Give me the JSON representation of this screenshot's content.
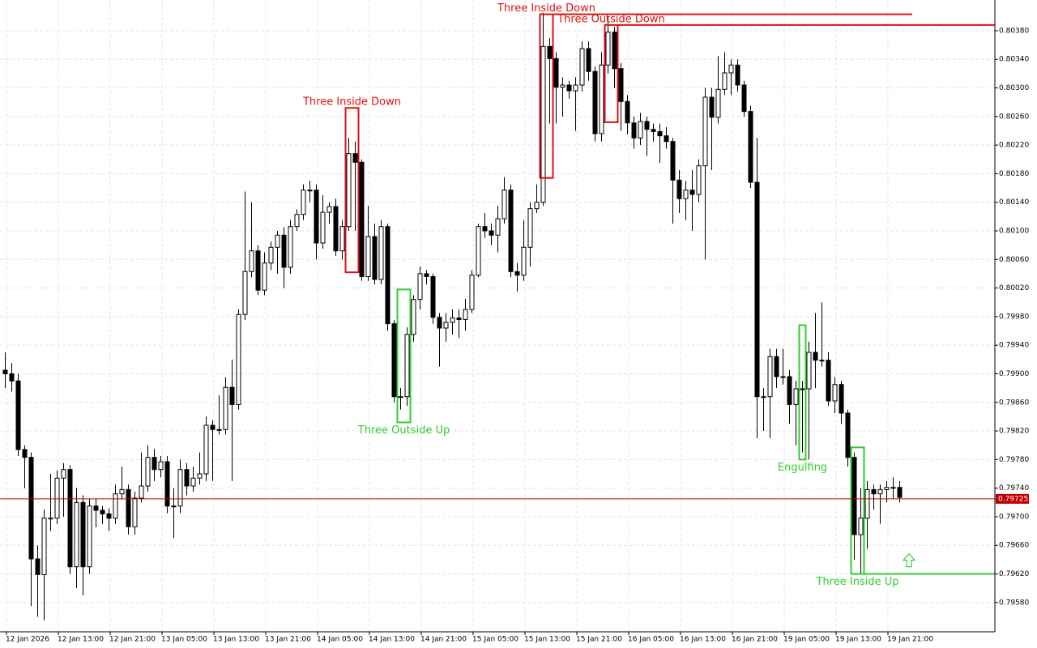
{
  "chart_data": {
    "type": "candlestick",
    "xlim": [
      -0.75,
      152.75
    ],
    "ylim": [
      0.79539,
      0.80423
    ],
    "grid": true,
    "bull_color": "#ffffff",
    "bear_color": "#000000",
    "outline_color": "#000000",
    "xticks": [
      {
        "value": 0,
        "label": "12 Jan 2026"
      },
      {
        "value": 8,
        "label": "12 Jan 13:00"
      },
      {
        "value": 16,
        "label": "12 Jan 21:00"
      },
      {
        "value": 24,
        "label": "13 Jan 05:00"
      },
      {
        "value": 32,
        "label": "13 Jan 13:00"
      },
      {
        "value": 40,
        "label": "13 Jan 21:00"
      },
      {
        "value": 48,
        "label": "14 Jan 05:00"
      },
      {
        "value": 56,
        "label": "14 Jan 13:00"
      },
      {
        "value": 64,
        "label": "14 Jan 21:00"
      },
      {
        "value": 72,
        "label": "15 Jan 05:00"
      },
      {
        "value": 80,
        "label": "15 Jan 13:00"
      },
      {
        "value": 88,
        "label": "15 Jan 21:00"
      },
      {
        "value": 96,
        "label": "16 Jan 05:00"
      },
      {
        "value": 104,
        "label": "16 Jan 13:00"
      },
      {
        "value": 112,
        "label": "16 Jan 21:00"
      },
      {
        "value": 120,
        "label": "19 Jan 05:00"
      },
      {
        "value": 128,
        "label": "19 Jan 13:00"
      },
      {
        "value": 136,
        "label": "19 Jan 21:00"
      }
    ],
    "yticks": [
      {
        "value": 0.8038,
        "label": "0.80380"
      },
      {
        "value": 0.8034,
        "label": "0.80340"
      },
      {
        "value": 0.803,
        "label": "0.80300"
      },
      {
        "value": 0.8026,
        "label": "0.80260"
      },
      {
        "value": 0.8022,
        "label": "0.80220"
      },
      {
        "value": 0.8018,
        "label": "0.80180"
      },
      {
        "value": 0.8014,
        "label": "0.80140"
      },
      {
        "value": 0.801,
        "label": "0.80100"
      },
      {
        "value": 0.8006,
        "label": "0.80060"
      },
      {
        "value": 0.8002,
        "label": "0.80020"
      },
      {
        "value": 0.7998,
        "label": "0.79980"
      },
      {
        "value": 0.7994,
        "label": "0.79940"
      },
      {
        "value": 0.799,
        "label": "0.79900"
      },
      {
        "value": 0.7986,
        "label": "0.79860"
      },
      {
        "value": 0.7982,
        "label": "0.79820"
      },
      {
        "value": 0.7978,
        "label": "0.79780"
      },
      {
        "value": 0.7974,
        "label": "0.79740"
      },
      {
        "value": 0.797,
        "label": "0.79700"
      },
      {
        "value": 0.7966,
        "label": "0.79660"
      },
      {
        "value": 0.7962,
        "label": "0.79620"
      },
      {
        "value": 0.7958,
        "label": "0.79580"
      }
    ],
    "current_price": {
      "value": 0.79725,
      "label": "0.79725",
      "color": "#c00000"
    },
    "open": [
      0.79905,
      0.799,
      0.7989,
      0.79794,
      0.79783,
      0.79641,
      0.79619,
      0.79698,
      0.79698,
      0.79754,
      0.79766,
      0.7963,
      0.7972,
      0.7963,
      0.79715,
      0.79709,
      0.79704,
      0.79698,
      0.79732,
      0.79738,
      0.79686,
      0.79726,
      0.79743,
      0.79783,
      0.79766,
      0.79777,
      0.79715,
      0.79715,
      0.79766,
      0.79743,
      0.79754,
      0.7976,
      0.79828,
      0.79822,
      0.79822,
      0.79881,
      0.79857,
      0.79983,
      0.80043,
      0.80072,
      0.80017,
      0.80055,
      0.80077,
      0.80094,
      0.80049,
      0.80106,
      0.80123,
      0.80157,
      0.80157,
      0.80083,
      0.80126,
      0.80134,
      0.80072,
      0.80106,
      0.80208,
      0.80196,
      0.80036,
      0.80092,
      0.80032,
      0.80106,
      0.7997,
      0.79868,
      0.79868,
      0.79955,
      0.80004,
      0.8004,
      0.80036,
      0.79979,
      0.79964,
      0.79972,
      0.79978,
      0.79976,
      0.7999,
      0.80038,
      0.80106,
      0.801,
      0.80094,
      0.80117,
      0.80157,
      0.80043,
      0.80038,
      0.80077,
      0.80131,
      0.8014,
      0.80358,
      0.80341,
      0.80301,
      0.80304,
      0.80296,
      0.80304,
      0.80355,
      0.80323,
      0.80236,
      0.80332,
      0.80378,
      0.80327,
      0.80281,
      0.80251,
      0.8023,
      0.80253,
      0.80242,
      0.80239,
      0.80233,
      0.80225,
      0.80171,
      0.80145,
      0.80157,
      0.80151,
      0.80191,
      0.80287,
      0.80259,
      0.80298,
      0.80321,
      0.80332,
      0.80304,
      0.80267,
      0.80168,
      0.79868,
      0.79868,
      0.79924,
      0.79896,
      0.79896,
      0.79857,
      0.79879,
      0.79879,
      0.7993,
      0.79919,
      0.79919,
      0.79862,
      0.79885,
      0.79845,
      0.79783,
      0.79675,
      0.79698,
      0.79738,
      0.79732,
      0.79738,
      0.79741,
      0.79741
    ],
    "high": [
      0.7993,
      0.79915,
      0.799,
      0.798,
      0.7979,
      0.7966,
      0.7971,
      0.7976,
      0.79765,
      0.79775,
      0.79772,
      0.7974,
      0.7973,
      0.79725,
      0.79725,
      0.79715,
      0.79712,
      0.79745,
      0.7977,
      0.79745,
      0.79735,
      0.7979,
      0.798,
      0.79795,
      0.79785,
      0.79785,
      0.7974,
      0.7978,
      0.79775,
      0.7977,
      0.7979,
      0.7984,
      0.79835,
      0.7987,
      0.79895,
      0.7992,
      0.7999,
      0.80155,
      0.8014,
      0.8008,
      0.8007,
      0.80085,
      0.801,
      0.80105,
      0.80115,
      0.8013,
      0.80165,
      0.8017,
      0.80165,
      0.8015,
      0.8014,
      0.80145,
      0.80115,
      0.8023,
      0.80225,
      0.802,
      0.80135,
      0.8011,
      0.80115,
      0.8011,
      0.79975,
      0.7988,
      0.79965,
      0.8001,
      0.8005,
      0.80045,
      0.8004,
      0.79985,
      0.79985,
      0.7999,
      0.7999,
      0.80005,
      0.80045,
      0.8011,
      0.80125,
      0.8011,
      0.80135,
      0.80175,
      0.80165,
      0.80055,
      0.80115,
      0.8014,
      0.80165,
      0.80405,
      0.8037,
      0.8035,
      0.80315,
      0.8031,
      0.80315,
      0.80365,
      0.80365,
      0.8033,
      0.8035,
      0.804,
      0.80385,
      0.80335,
      0.8029,
      0.8026,
      0.80265,
      0.8026,
      0.8025,
      0.8025,
      0.80245,
      0.8023,
      0.80185,
      0.8017,
      0.80185,
      0.802,
      0.803,
      0.803,
      0.80345,
      0.8035,
      0.8034,
      0.8034,
      0.8031,
      0.80275,
      0.8023,
      0.7988,
      0.79935,
      0.79935,
      0.79935,
      0.79905,
      0.7989,
      0.7989,
      0.79945,
      0.79985,
      0.8,
      0.7993,
      0.79895,
      0.7989,
      0.7985,
      0.7979,
      0.7974,
      0.7975,
      0.79745,
      0.79745,
      0.7975,
      0.79755,
      0.7975
    ],
    "low": [
      0.7988,
      0.79875,
      0.79785,
      0.7974,
      0.79575,
      0.7956,
      0.79555,
      0.7968,
      0.7969,
      0.797,
      0.7962,
      0.796,
      0.7959,
      0.7962,
      0.79685,
      0.7969,
      0.7968,
      0.7969,
      0.79725,
      0.79675,
      0.79675,
      0.7972,
      0.79735,
      0.7975,
      0.79755,
      0.79705,
      0.7967,
      0.79705,
      0.7973,
      0.79735,
      0.79745,
      0.7975,
      0.7975,
      0.79815,
      0.79815,
      0.7975,
      0.7985,
      0.79975,
      0.80035,
      0.8001,
      0.8001,
      0.80045,
      0.8004,
      0.8002,
      0.8004,
      0.801,
      0.80115,
      0.8014,
      0.8006,
      0.80075,
      0.8011,
      0.80065,
      0.8006,
      0.801,
      0.801,
      0.8003,
      0.8003,
      0.80025,
      0.80025,
      0.7996,
      0.7986,
      0.7985,
      0.79855,
      0.79945,
      0.7999,
      0.80025,
      0.7997,
      0.7991,
      0.79945,
      0.79955,
      0.7995,
      0.7996,
      0.79985,
      0.80035,
      0.8009,
      0.8008,
      0.8007,
      0.8011,
      0.80035,
      0.80015,
      0.8003,
      0.8005,
      0.80125,
      0.80135,
      0.8025,
      0.8025,
      0.8026,
      0.80285,
      0.8024,
      0.80295,
      0.8031,
      0.80225,
      0.80225,
      0.8032,
      0.803,
      0.8024,
      0.80235,
      0.80215,
      0.8022,
      0.80205,
      0.80225,
      0.80195,
      0.80215,
      0.8011,
      0.80125,
      0.80115,
      0.801,
      0.8014,
      0.8006,
      0.80185,
      0.8025,
      0.8029,
      0.8029,
      0.80295,
      0.8026,
      0.8016,
      0.7981,
      0.7982,
      0.7981,
      0.7988,
      0.79885,
      0.7983,
      0.798,
      0.7979,
      0.7978,
      0.7988,
      0.7991,
      0.79855,
      0.79845,
      0.7983,
      0.7977,
      0.7964,
      0.7962,
      0.79655,
      0.7971,
      0.7969,
      0.7972,
      0.79725,
      0.7972
    ],
    "close": [
      0.799,
      0.7989,
      0.79794,
      0.79783,
      0.79641,
      0.79619,
      0.79698,
      0.79698,
      0.79754,
      0.79766,
      0.7963,
      0.7972,
      0.7963,
      0.79715,
      0.79709,
      0.79704,
      0.79698,
      0.79732,
      0.79738,
      0.79686,
      0.79726,
      0.79743,
      0.79783,
      0.79766,
      0.79777,
      0.79715,
      0.79715,
      0.79766,
      0.79743,
      0.79754,
      0.7976,
      0.79828,
      0.79822,
      0.79822,
      0.79881,
      0.79857,
      0.79983,
      0.80043,
      0.80072,
      0.80017,
      0.80055,
      0.80077,
      0.80094,
      0.80049,
      0.80106,
      0.80123,
      0.80157,
      0.80157,
      0.80083,
      0.80126,
      0.80134,
      0.80072,
      0.80106,
      0.80208,
      0.80196,
      0.80036,
      0.80092,
      0.80032,
      0.80106,
      0.7997,
      0.79868,
      0.79868,
      0.79955,
      0.80004,
      0.8004,
      0.80036,
      0.79979,
      0.79964,
      0.79972,
      0.79978,
      0.79976,
      0.7999,
      0.80038,
      0.80106,
      0.801,
      0.80094,
      0.80117,
      0.80157,
      0.80043,
      0.80038,
      0.80077,
      0.80131,
      0.8014,
      0.80358,
      0.80341,
      0.80301,
      0.80304,
      0.80296,
      0.80304,
      0.80355,
      0.80323,
      0.80236,
      0.80332,
      0.80378,
      0.80327,
      0.80281,
      0.80251,
      0.8023,
      0.80253,
      0.80242,
      0.80239,
      0.80233,
      0.80225,
      0.80171,
      0.80145,
      0.80157,
      0.80151,
      0.80191,
      0.80287,
      0.80259,
      0.80298,
      0.80321,
      0.80332,
      0.80304,
      0.80267,
      0.80168,
      0.79868,
      0.79868,
      0.79924,
      0.79896,
      0.79896,
      0.79857,
      0.79879,
      0.79879,
      0.7993,
      0.79919,
      0.79919,
      0.79862,
      0.79885,
      0.79845,
      0.79783,
      0.79675,
      0.79698,
      0.79738,
      0.79732,
      0.79738,
      0.79741,
      0.79741,
      0.79727
    ],
    "patterns": [
      {
        "label": "Three Inside Down",
        "color": "#e01010",
        "start": 53,
        "end": 54,
        "top": 0.80272,
        "bottom": 0.80042,
        "label_side": "above"
      },
      {
        "label": "Three Outside Up",
        "color": "#32cd32",
        "start": 61,
        "end": 62,
        "top": 0.80018,
        "bottom": 0.79832,
        "label_side": "below"
      },
      {
        "label": "Three Inside Down",
        "color": "#e01010",
        "start": 83,
        "end": 84,
        "top": 0.80403,
        "bottom": 0.80174,
        "label_side": "above",
        "line": {
          "value": 0.80403,
          "end": 140
        }
      },
      {
        "label": "Three Outside Down",
        "color": "#e01010",
        "start": 93,
        "end": 94,
        "top": 0.80388,
        "bottom": 0.80252,
        "label_side": "above",
        "line": {
          "value": 0.80388,
          "end": 152.75
        }
      },
      {
        "label": "Engulfing",
        "color": "#32cd32",
        "start": 123,
        "end": 123,
        "top": 0.79968,
        "bottom": 0.7978,
        "label_side": "below"
      },
      {
        "label": "Three Inside Up",
        "color": "#32cd32",
        "start": 131,
        "end": 132,
        "top": 0.79797,
        "bottom": 0.7962,
        "label_side": "below",
        "line": {
          "value": 0.7962,
          "end": 152.75
        },
        "arrow": {
          "x": 139.5,
          "y": 0.79638,
          "direction": "up"
        }
      }
    ]
  }
}
